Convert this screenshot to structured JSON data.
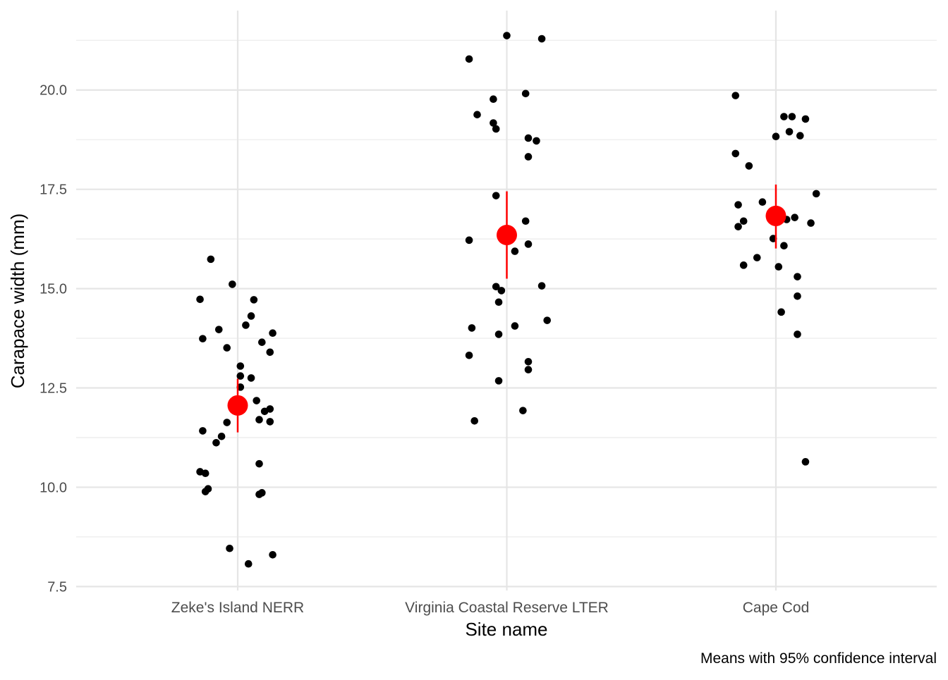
{
  "chart_data": {
    "type": "scatter",
    "xlabel": "Site name",
    "ylabel": "Carapace width (mm)",
    "caption": "Means with 95% confidence interval",
    "categories": [
      "Zeke's Island NERR",
      "Virginia Coastal Reserve LTER",
      "Cape Cod"
    ],
    "ylim": [
      7.4,
      22.0
    ],
    "yticks": [
      "7.5",
      "10.0",
      "12.5",
      "15.0",
      "17.5",
      "20.0"
    ],
    "grid": true,
    "point_color": "#000000",
    "summary_color": "#ff0000",
    "points": [
      {
        "category": "Zeke's Island NERR",
        "jitter": [
          -0.1,
          -0.02,
          -0.14,
          0.06,
          0.05,
          -0.07,
          0.03,
          -0.13,
          0.13,
          -0.04,
          0.09,
          0.12,
          0.01,
          0.01,
          0.05,
          0.01,
          0.07,
          0.12,
          0.1,
          -0.04,
          0.08,
          0.12,
          -0.13,
          -0.06,
          -0.08,
          0.08,
          -0.14,
          -0.12,
          -0.11,
          -0.12,
          0.09,
          0.08,
          -0.03,
          0.13,
          0.04
        ],
        "values": [
          15.74,
          15.11,
          14.73,
          14.72,
          14.31,
          13.97,
          14.08,
          13.74,
          13.88,
          13.51,
          13.65,
          13.4,
          13.05,
          12.8,
          12.75,
          12.52,
          12.18,
          11.97,
          11.91,
          11.63,
          11.7,
          11.65,
          11.42,
          11.28,
          11.12,
          10.59,
          10.39,
          10.35,
          9.96,
          9.89,
          9.86,
          9.82,
          8.46,
          8.3,
          8.07
        ]
      },
      {
        "category": "Virginia Coastal Reserve LTER",
        "jitter": [
          0.0,
          0.13,
          -0.14,
          0.07,
          -0.05,
          -0.11,
          -0.05,
          -0.04,
          0.08,
          0.11,
          0.08,
          -0.04,
          0.07,
          -0.14,
          0.08,
          0.03,
          -0.04,
          -0.02,
          0.13,
          -0.03,
          0.15,
          -0.13,
          0.03,
          -0.03,
          -0.14,
          0.08,
          0.08,
          -0.03,
          0.06,
          -0.12
        ],
        "values": [
          21.37,
          21.29,
          20.78,
          19.91,
          19.77,
          19.38,
          19.17,
          19.02,
          18.79,
          18.72,
          18.32,
          17.34,
          16.7,
          16.22,
          16.12,
          15.94,
          15.05,
          14.95,
          15.07,
          14.66,
          14.2,
          14.01,
          14.06,
          13.85,
          13.32,
          13.16,
          12.96,
          12.68,
          11.93,
          11.67
        ]
      },
      {
        "category": "Cape Cod",
        "jitter": [
          -0.15,
          0.03,
          0.06,
          0.11,
          0.05,
          0.0,
          0.09,
          -0.15,
          -0.1,
          0.15,
          -0.14,
          -0.05,
          -0.12,
          -0.14,
          0.04,
          0.07,
          0.13,
          -0.01,
          0.03,
          -0.07,
          -0.12,
          0.01,
          0.08,
          0.08,
          0.02,
          0.08,
          0.11
        ],
        "values": [
          19.86,
          19.33,
          19.33,
          19.27,
          18.95,
          18.83,
          18.85,
          18.4,
          18.09,
          17.39,
          17.11,
          17.18,
          16.7,
          16.56,
          16.74,
          16.79,
          16.65,
          16.26,
          16.08,
          15.78,
          15.59,
          15.55,
          15.3,
          14.81,
          14.41,
          13.85,
          10.64
        ]
      }
    ],
    "summary": [
      {
        "category": "Zeke's Island NERR",
        "mean": 12.06,
        "ci_low": 11.38,
        "ci_high": 12.73
      },
      {
        "category": "Virginia Coastal Reserve LTER",
        "mean": 16.35,
        "ci_low": 15.25,
        "ci_high": 17.45
      },
      {
        "category": "Cape Cod",
        "mean": 16.83,
        "ci_low": 16.01,
        "ci_high": 17.62
      }
    ]
  }
}
